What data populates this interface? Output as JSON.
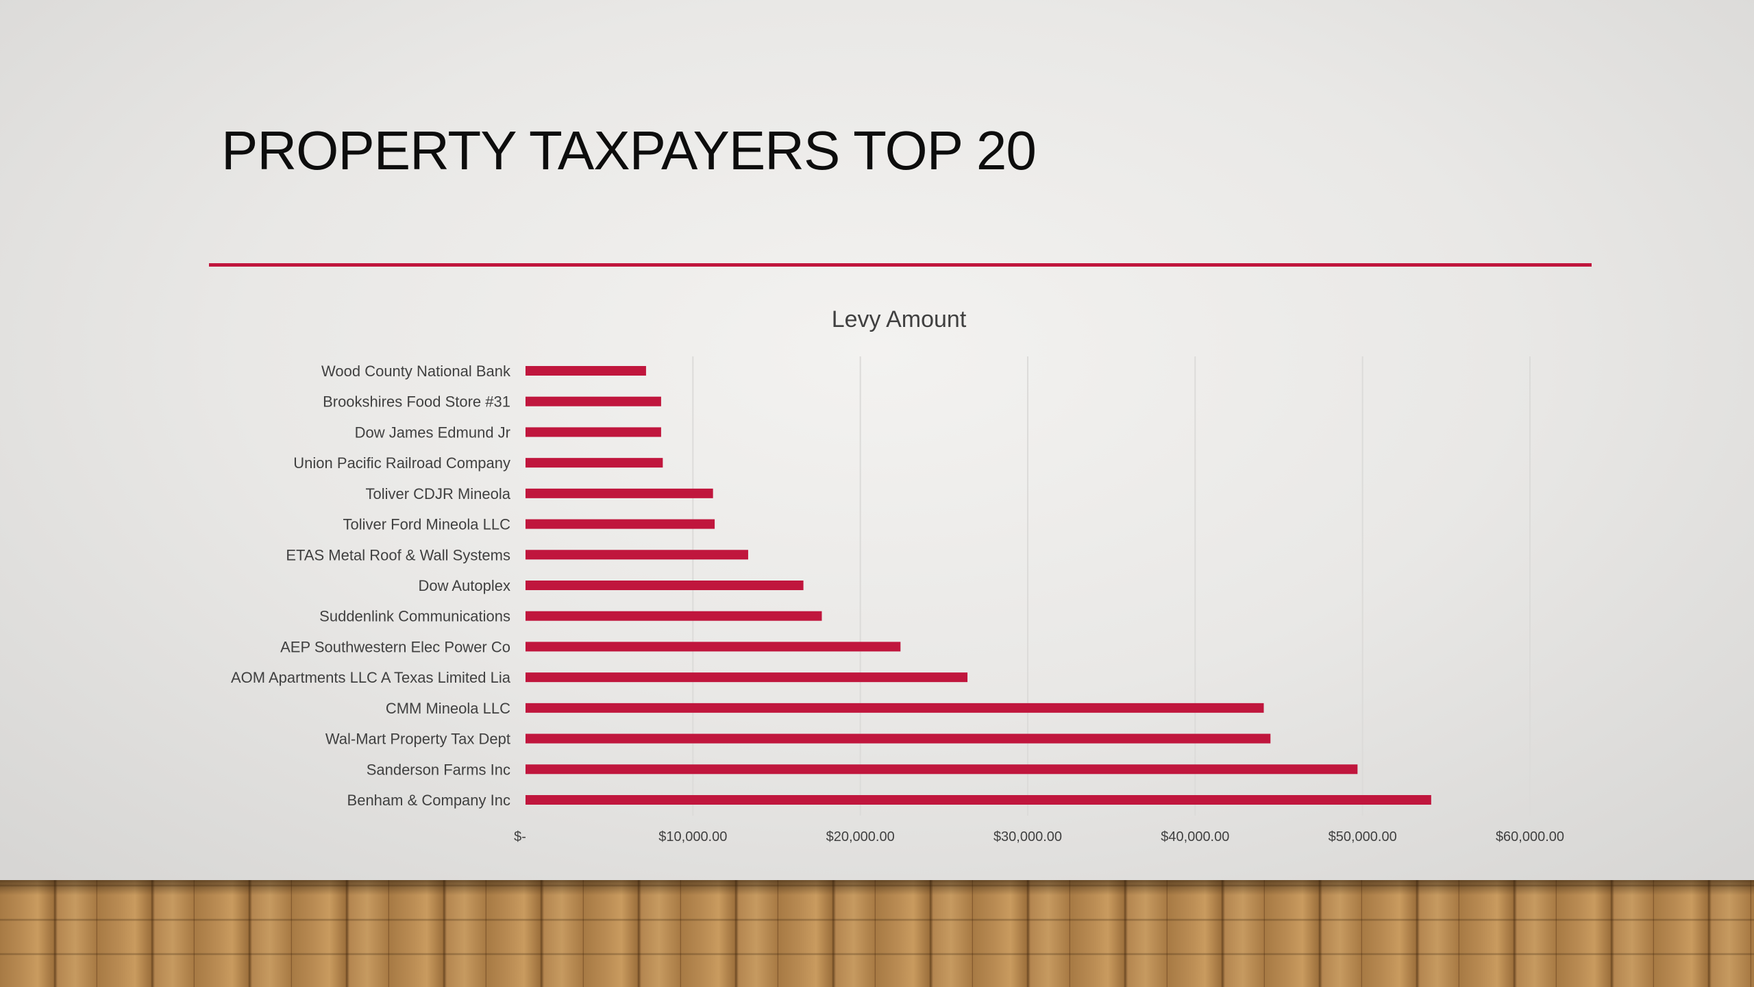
{
  "slide": {
    "title": "PROPERTY TAXPAYERS TOP 20",
    "accent_color": "#c0163d"
  },
  "chart_data": {
    "type": "bar",
    "orientation": "horizontal",
    "title": "Levy Amount",
    "xlabel": "",
    "ylabel": "",
    "categories": [
      "Wood County National Bank",
      "Brookshires Food Store #31",
      "Dow James Edmund Jr",
      "Union Pacific Railroad Company",
      "Toliver CDJR Mineola",
      "Toliver Ford Mineola LLC",
      "ETAS Metal Roof & Wall Systems",
      "Dow Autoplex",
      "Suddenlink Communications",
      "AEP Southwestern Elec Power Co",
      "AOM Apartments LLC A Texas Limited Lia",
      "CMM Mineola LLC",
      "Wal-Mart Property Tax Dept",
      "Sanderson Farms Inc",
      "Benham & Company Inc"
    ],
    "series": [
      {
        "values": [
          7200,
          8100,
          8100,
          8200,
          11200,
          11300,
          13300,
          16600,
          17700,
          22400,
          26400,
          44100,
          44500,
          49700,
          54100
        ],
        "color": "#c0163d"
      }
    ],
    "xlim": [
      0,
      60000
    ],
    "x_ticks": [
      0,
      10000,
      20000,
      30000,
      40000,
      50000,
      60000
    ],
    "x_tick_labels": [
      "$-",
      "$10,000.00",
      "$20,000.00",
      "$30,000.00",
      "$40,000.00",
      "$50,000.00",
      "$60,000.00"
    ],
    "grid": "vertical",
    "legend": "none"
  }
}
